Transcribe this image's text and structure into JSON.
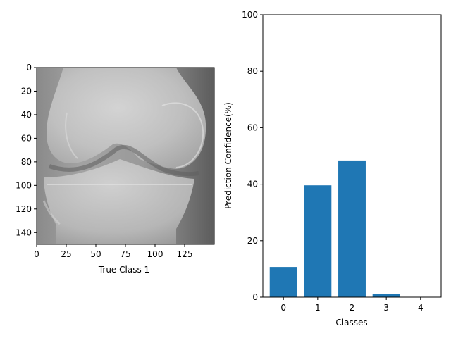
{
  "chart_data": [
    {
      "type": "image",
      "xlabel": "True Class 1",
      "x_ticks": [
        0,
        25,
        50,
        75,
        100,
        125
      ],
      "y_ticks": [
        0,
        20,
        40,
        60,
        80,
        100,
        120,
        140
      ],
      "extent": [
        0,
        150
      ],
      "image_description": "grayscale knee X-ray (frontal view of knee joint)"
    },
    {
      "type": "bar",
      "categories": [
        "0",
        "1",
        "2",
        "3",
        "4"
      ],
      "values": [
        10.7,
        39.6,
        48.4,
        1.2,
        0.1
      ],
      "xlabel": "Classes",
      "ylabel": "Prediction Confidence(%)",
      "ylim": [
        0,
        100
      ],
      "y_ticks": [
        0,
        20,
        40,
        60,
        80,
        100
      ],
      "bar_color": "#1f77b4"
    }
  ]
}
